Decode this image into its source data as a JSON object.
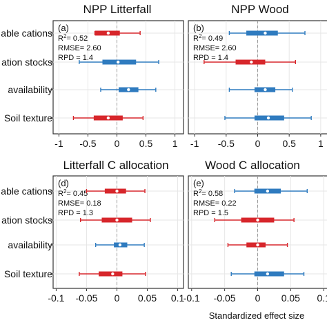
{
  "colors": {
    "positive": "#2f7bbf",
    "negative": "#d7262b",
    "median": "#ffffff"
  },
  "categories": [
    "able cations",
    "ation stocks",
    "availability",
    "Soil texture"
  ],
  "x_axis_label": "Standardized effect size",
  "chart_data": [
    {
      "type": "forest",
      "title": "NPP Litterfall",
      "panel_label": "(a)",
      "stats": {
        "r2": "0.52",
        "rmse": "2.60",
        "rpd": "1.4"
      },
      "xlim": [
        -1.1,
        1.1
      ],
      "xticks": [
        -1,
        -0.5,
        0,
        0.5,
        1
      ],
      "xtick_labels": [
        "-1",
        "-0.5",
        "0",
        "0.5",
        "1"
      ],
      "rows": [
        {
          "category": "able cations",
          "color": "negative",
          "median": -0.15,
          "q1": -0.38,
          "q3": 0.05,
          "lo": -0.38,
          "hi": 0.4
        },
        {
          "category": "ation stocks",
          "color": "positive",
          "median": 0.02,
          "q1": -0.25,
          "q3": 0.33,
          "lo": -0.65,
          "hi": 0.72
        },
        {
          "category": "availability",
          "color": "positive",
          "median": 0.2,
          "q1": 0.03,
          "q3": 0.37,
          "lo": -0.28,
          "hi": 0.67
        },
        {
          "category": "Soil texture",
          "color": "negative",
          "median": -0.15,
          "q1": -0.4,
          "q3": 0.1,
          "lo": -0.75,
          "hi": 0.45
        }
      ]
    },
    {
      "type": "forest",
      "title": "NPP Wood",
      "panel_label": "(b)",
      "stats": {
        "r2": "0.49",
        "rmse": "2.60",
        "rpd": "1.4"
      },
      "xlim": [
        -1.1,
        1.1
      ],
      "xticks": [
        -1,
        -0.5,
        0,
        0.5,
        1
      ],
      "xtick_labels": [
        "-1",
        "-0.5",
        "0",
        "0.5",
        "1"
      ],
      "rows": [
        {
          "category": "able cations",
          "color": "positive",
          "median": 0.12,
          "q1": -0.18,
          "q3": 0.32,
          "lo": -0.45,
          "hi": 0.75
        },
        {
          "category": "ation stocks",
          "color": "negative",
          "median": -0.1,
          "q1": -0.35,
          "q3": 0.12,
          "lo": -0.85,
          "hi": 0.6
        },
        {
          "category": "availability",
          "color": "positive",
          "median": 0.12,
          "q1": -0.05,
          "q3": 0.28,
          "lo": -0.45,
          "hi": 0.55
        },
        {
          "category": "Soil texture",
          "color": "positive",
          "median": 0.17,
          "q1": -0.05,
          "q3": 0.42,
          "lo": -0.52,
          "hi": 0.85
        }
      ]
    },
    {
      "type": "forest",
      "title": "Litterfall C allocation",
      "panel_label": "(d)",
      "stats": {
        "r2": "0.45",
        "rmse": "0.18",
        "rpd": "1.3"
      },
      "xlim": [
        -0.105,
        0.105
      ],
      "xticks": [
        -0.1,
        -0.05,
        0,
        0.05,
        0.1
      ],
      "xtick_labels": [
        "-0.1",
        "-0.05",
        "0",
        "0.05",
        "0.1"
      ],
      "rows": [
        {
          "category": "able cations",
          "color": "negative",
          "median": 0.0,
          "q1": -0.02,
          "q3": 0.015,
          "lo": -0.05,
          "hi": 0.046
        },
        {
          "category": "ation stocks",
          "color": "negative",
          "median": 0.0,
          "q1": -0.025,
          "q3": 0.025,
          "lo": -0.06,
          "hi": 0.055
        },
        {
          "category": "availability",
          "color": "positive",
          "median": 0.005,
          "q1": -0.005,
          "q3": 0.017,
          "lo": -0.035,
          "hi": 0.045
        },
        {
          "category": "Soil texture",
          "color": "negative",
          "median": -0.007,
          "q1": -0.03,
          "q3": 0.009,
          "lo": -0.062,
          "hi": 0.047
        }
      ]
    },
    {
      "type": "forest",
      "title": "Wood C allocation",
      "panel_label": "(e)",
      "stats": {
        "r2": "0.58",
        "rmse": "0.22",
        "rpd": "1.5"
      },
      "xlim": [
        -0.105,
        0.105
      ],
      "xticks": [
        -0.1,
        -0.05,
        0,
        0.05,
        0.1
      ],
      "xtick_labels": [
        "-0.1",
        "-0.05",
        "0",
        "0.05",
        "0.1"
      ],
      "rows": [
        {
          "category": "able cations",
          "color": "positive",
          "median": 0.015,
          "q1": -0.005,
          "q3": 0.035,
          "lo": -0.035,
          "hi": 0.075
        },
        {
          "category": "ation stocks",
          "color": "negative",
          "median": 0.0,
          "q1": -0.025,
          "q3": 0.025,
          "lo": -0.065,
          "hi": 0.055
        },
        {
          "category": "availability",
          "color": "negative",
          "median": 0.0,
          "q1": -0.017,
          "q3": 0.012,
          "lo": -0.045,
          "hi": 0.045
        },
        {
          "category": "Soil texture",
          "color": "positive",
          "median": 0.015,
          "q1": -0.005,
          "q3": 0.04,
          "lo": -0.04,
          "hi": 0.07
        }
      ]
    }
  ]
}
